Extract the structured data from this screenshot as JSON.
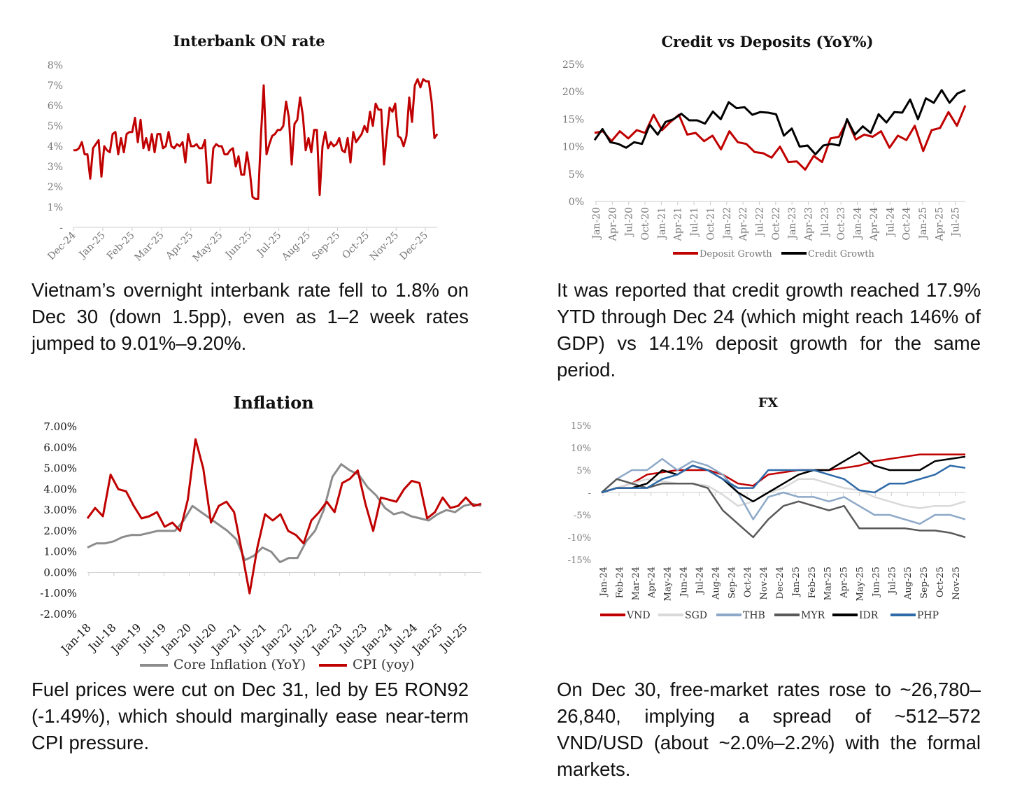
{
  "chart_data": [
    {
      "id": "interbank",
      "type": "line",
      "title": "Interbank ON rate",
      "xlabel": "",
      "ylabel": "",
      "x_ticks": [
        "Dec-24",
        "Jan-25",
        "Feb-25",
        "Mar-25",
        "Apr-25",
        "May-25",
        "Jun-25",
        "Jul-25",
        "Aug-25",
        "Sep-25",
        "Oct-25",
        "Nov-25",
        "Dec-25"
      ],
      "y_ticks": [
        "-",
        "1%",
        "2%",
        "3%",
        "4%",
        "5%",
        "6%",
        "7%",
        "8%"
      ],
      "ylim": [
        0,
        8
      ],
      "grid": false,
      "legend": "none",
      "series": [
        {
          "color": "#c00000",
          "values": [
            3.8,
            3.8,
            3.9,
            4.2,
            3.6,
            3.6,
            2.4,
            3.9,
            4.1,
            4.3,
            2.5,
            4.0,
            3.8,
            3.7,
            4.6,
            4.7,
            3.6,
            4.4,
            3.7,
            4.6,
            4.7,
            4.7,
            5.4,
            4.2,
            5.3,
            3.9,
            4.4,
            3.8,
            4.6,
            3.7,
            4.6,
            4.6,
            3.9,
            4.0,
            4.7,
            4.0,
            3.9,
            4.1,
            4.0,
            4.2,
            3.2,
            4.6,
            4.0,
            4.0,
            4.1,
            3.9,
            3.9,
            4.3,
            2.2,
            2.2,
            3.9,
            4.1,
            4.0,
            4.0,
            3.6,
            3.6,
            3.8,
            3.9,
            3.0,
            3.5,
            2.6,
            2.6,
            3.7,
            2.8,
            1.5,
            1.4,
            1.4,
            4.5,
            7.0,
            3.6,
            4.1,
            4.5,
            4.6,
            4.8,
            4.8,
            5.0,
            6.2,
            5.4,
            3.1,
            5.1,
            5.3,
            6.4,
            5.5,
            3.8,
            4.4,
            3.7,
            4.8,
            4.8,
            1.6,
            4.0,
            4.7,
            3.9,
            4.2,
            4.0,
            4.1,
            4.4,
            3.8,
            3.7,
            4.4,
            3.2,
            4.7,
            4.2,
            4.4,
            4.6,
            5.0,
            4.7,
            5.7,
            5.0,
            6.1,
            5.8,
            5.8,
            3.1,
            4.6,
            5.9,
            5.7,
            6.1,
            4.5,
            4.4,
            4.0,
            4.5,
            6.4,
            5.2,
            7.0,
            7.3,
            6.9,
            7.3,
            7.2,
            7.2,
            6.2,
            4.4,
            4.6
          ]
        }
      ]
    },
    {
      "id": "credit",
      "type": "line",
      "title": "Credit vs Deposits (YoY%)",
      "xlabel": "",
      "ylabel": "",
      "x_ticks": [
        "Jan-20",
        "Apr-20",
        "Jul-20",
        "Oct-20",
        "Jan-21",
        "Apr-21",
        "Jul-21",
        "Oct-21",
        "Jan-22",
        "Apr-22",
        "Jul-22",
        "Oct-22",
        "Jan-23",
        "Apr-23",
        "Jul-23",
        "Oct-23",
        "Jan-24",
        "Apr-24",
        "Jul-24",
        "Oct-24",
        "Jan-25",
        "Apr-25",
        "Jul-25"
      ],
      "y_ticks": [
        "0%",
        "5%",
        "10%",
        "15%",
        "20%",
        "25%"
      ],
      "ylim": [
        0,
        25
      ],
      "grid": false,
      "legend": "bottom",
      "series": [
        {
          "name": "Deposit Growth",
          "color": "#c00000",
          "values": [
            12.5,
            12.8,
            11,
            12.8,
            11.5,
            13,
            12.5,
            15.8,
            13,
            14.5,
            15.8,
            12.2,
            12.5,
            11,
            12,
            9.5,
            12.8,
            10.8,
            10.5,
            9,
            8.8,
            8,
            10,
            7.2,
            7.3,
            5.8,
            8.3,
            7.2,
            11.5,
            11.8,
            14.8,
            11.3,
            12.2,
            11.8,
            12.8,
            9.8,
            12,
            11.2,
            13.8,
            9.2,
            13,
            13.4,
            16.3,
            13.8,
            17.5
          ]
        },
        {
          "name": "Credit Growth",
          "color": "#000000",
          "values": [
            11.2,
            13.2,
            10.8,
            10.5,
            9.8,
            10.8,
            10.5,
            14,
            12.2,
            14.5,
            15,
            16,
            14.8,
            14.8,
            14.2,
            16.4,
            15,
            18.1,
            17,
            17.2,
            15.8,
            16.3,
            16.2,
            15.9,
            12,
            13.3,
            10,
            10.2,
            8.6,
            10.2,
            10.5,
            10.2,
            15,
            12.2,
            13.7,
            12.5,
            15.9,
            14.4,
            16.3,
            16.2,
            18.6,
            15,
            18.8,
            18,
            20.3,
            18,
            19.7,
            20.3
          ]
        }
      ]
    },
    {
      "id": "inflation",
      "type": "line",
      "title": "Inflation",
      "xlabel": "",
      "ylabel": "",
      "x_ticks": [
        "Jan-18",
        "Jul-18",
        "Jan-19",
        "Jul-19",
        "Jan-20",
        "Jul-20",
        "Jan-21",
        "Jul-21",
        "Jan-22",
        "Jul-22",
        "Jan-23",
        "Jul-23",
        "Jan-24",
        "Jul-24",
        "Jan-25",
        "Jul-25"
      ],
      "y_ticks": [
        "-2.00%",
        "-1.00%",
        "0.00%",
        "1.00%",
        "2.00%",
        "3.00%",
        "4.00%",
        "5.00%",
        "6.00%",
        "7.00%"
      ],
      "ylim": [
        -2,
        7
      ],
      "grid": false,
      "legend": "bottom",
      "series": [
        {
          "name": "Core Inflation (YoY)",
          "color": "#8c8c8c",
          "values": [
            1.2,
            1.4,
            1.4,
            1.5,
            1.7,
            1.8,
            1.8,
            1.9,
            2.0,
            2.0,
            2.0,
            2.5,
            3.2,
            2.9,
            2.6,
            2.3,
            2.0,
            1.6,
            0.6,
            0.8,
            1.2,
            1.0,
            0.5,
            0.7,
            0.7,
            1.5,
            2.0,
            3.0,
            4.6,
            5.2,
            4.9,
            4.7,
            4.1,
            3.7,
            3.1,
            2.8,
            2.9,
            2.7,
            2.6,
            2.5,
            2.8,
            3.0,
            2.9,
            3.2,
            3.3,
            3.2
          ]
        },
        {
          "name": "CPI (yoy)",
          "color": "#c00000",
          "values": [
            2.6,
            3.1,
            2.7,
            4.7,
            4.0,
            3.9,
            3.2,
            2.6,
            2.7,
            2.9,
            2.2,
            2.4,
            2.0,
            3.5,
            6.4,
            5.0,
            2.4,
            3.2,
            3.4,
            2.9,
            1.0,
            -1.0,
            1.2,
            2.8,
            2.5,
            2.8,
            2.0,
            1.8,
            1.4,
            2.5,
            2.9,
            3.4,
            2.9,
            4.3,
            4.5,
            4.9,
            3.3,
            2.0,
            3.6,
            3.5,
            3.4,
            4.0,
            4.4,
            4.3,
            2.6,
            2.9,
            3.6,
            3.1,
            3.2,
            3.6,
            3.2,
            3.3
          ]
        }
      ]
    },
    {
      "id": "fx",
      "type": "line",
      "title": "FX",
      "xlabel": "",
      "ylabel": "",
      "x_ticks": [
        "Jan-24",
        "Feb-24",
        "Mar-24",
        "Apr-24",
        "May-24",
        "Jun-24",
        "Jul-24",
        "Aug-24",
        "Sep-24",
        "Oct-24",
        "Nov-24",
        "Dec-24",
        "Jan-25",
        "Feb-25",
        "Mar-25",
        "Apr-25",
        "May-25",
        "Jun-25",
        "Jul-25",
        "Aug-25",
        "Sep-25",
        "Oct-25",
        "Nov-25"
      ],
      "y_ticks": [
        "-15%",
        "-10%",
        "-5%",
        "-",
        "5%",
        "10%",
        "15%"
      ],
      "ylim": [
        -15,
        15
      ],
      "grid": false,
      "legend": "bottom",
      "series": [
        {
          "name": "VND",
          "color": "#c00000",
          "values": [
            0,
            1,
            2,
            4,
            4.5,
            5,
            5,
            5,
            4,
            2,
            1.5,
            4,
            4.5,
            5,
            5,
            5,
            5.5,
            6,
            7,
            7.5,
            8,
            8.5,
            8.5,
            8.5,
            8.5
          ]
        },
        {
          "name": "SGD",
          "color": "#d9d9d9",
          "values": [
            0,
            1,
            2,
            3,
            2.5,
            2,
            2,
            1.5,
            -0.5,
            -3,
            -2,
            0,
            1,
            3,
            3,
            2,
            1,
            0.5,
            -1,
            -2,
            -3,
            -3.5,
            -3,
            -3,
            -2
          ]
        },
        {
          "name": "THB",
          "color": "#8ea9c8",
          "values": [
            0,
            3,
            5,
            5,
            7.5,
            5,
            7,
            6,
            4,
            0,
            -6,
            -1,
            0,
            -1,
            -1,
            -2,
            -1,
            -3,
            -5,
            -5,
            -6,
            -7,
            -5,
            -5,
            -6
          ]
        },
        {
          "name": "MYR",
          "color": "#595959",
          "values": [
            0,
            3,
            2,
            1,
            2,
            2,
            2,
            1,
            -4,
            -7,
            -10,
            -6,
            -3,
            -2,
            -3,
            -4,
            -3,
            -8,
            -8,
            -8,
            -8,
            -8.5,
            -8.5,
            -9,
            -10
          ]
        },
        {
          "name": "IDR",
          "color": "#000000",
          "values": [
            0,
            1,
            1,
            2,
            5,
            4,
            6,
            5,
            3,
            0,
            -2,
            0,
            2,
            4,
            5,
            5,
            7,
            9,
            6,
            5,
            5,
            5,
            7,
            7.5,
            8
          ]
        },
        {
          "name": "PHP",
          "color": "#2e6aa8",
          "values": [
            0,
            1,
            1,
            1,
            3,
            4,
            6,
            5,
            3,
            1,
            1,
            5,
            5,
            5,
            5,
            4,
            3,
            0.5,
            0,
            2,
            2,
            3,
            4,
            6,
            5.5
          ]
        }
      ]
    }
  ],
  "paragraphs": {
    "interbank": "Vietnam’s overnight interbank rate fell to 1.8% on Dec 30 (down 1.5pp), even as 1–2 week rates jumped to 9.01%–9.20%.",
    "credit": "It was reported that credit growth reached 17.9% YTD through Dec 24 (which might reach 146% of GDP) vs 14.1% deposit growth for the same period.",
    "inflation": "Fuel prices were cut on Dec 31, led by E5 RON92 (-1.49%), which should marginally ease near-term CPI pressure.",
    "fx": "On Dec 30, free-market rates rose to ~26,780–26,840, implying a spread of ~512–572 VND/USD (about ~2.0%–2.2%) with the formal markets."
  }
}
